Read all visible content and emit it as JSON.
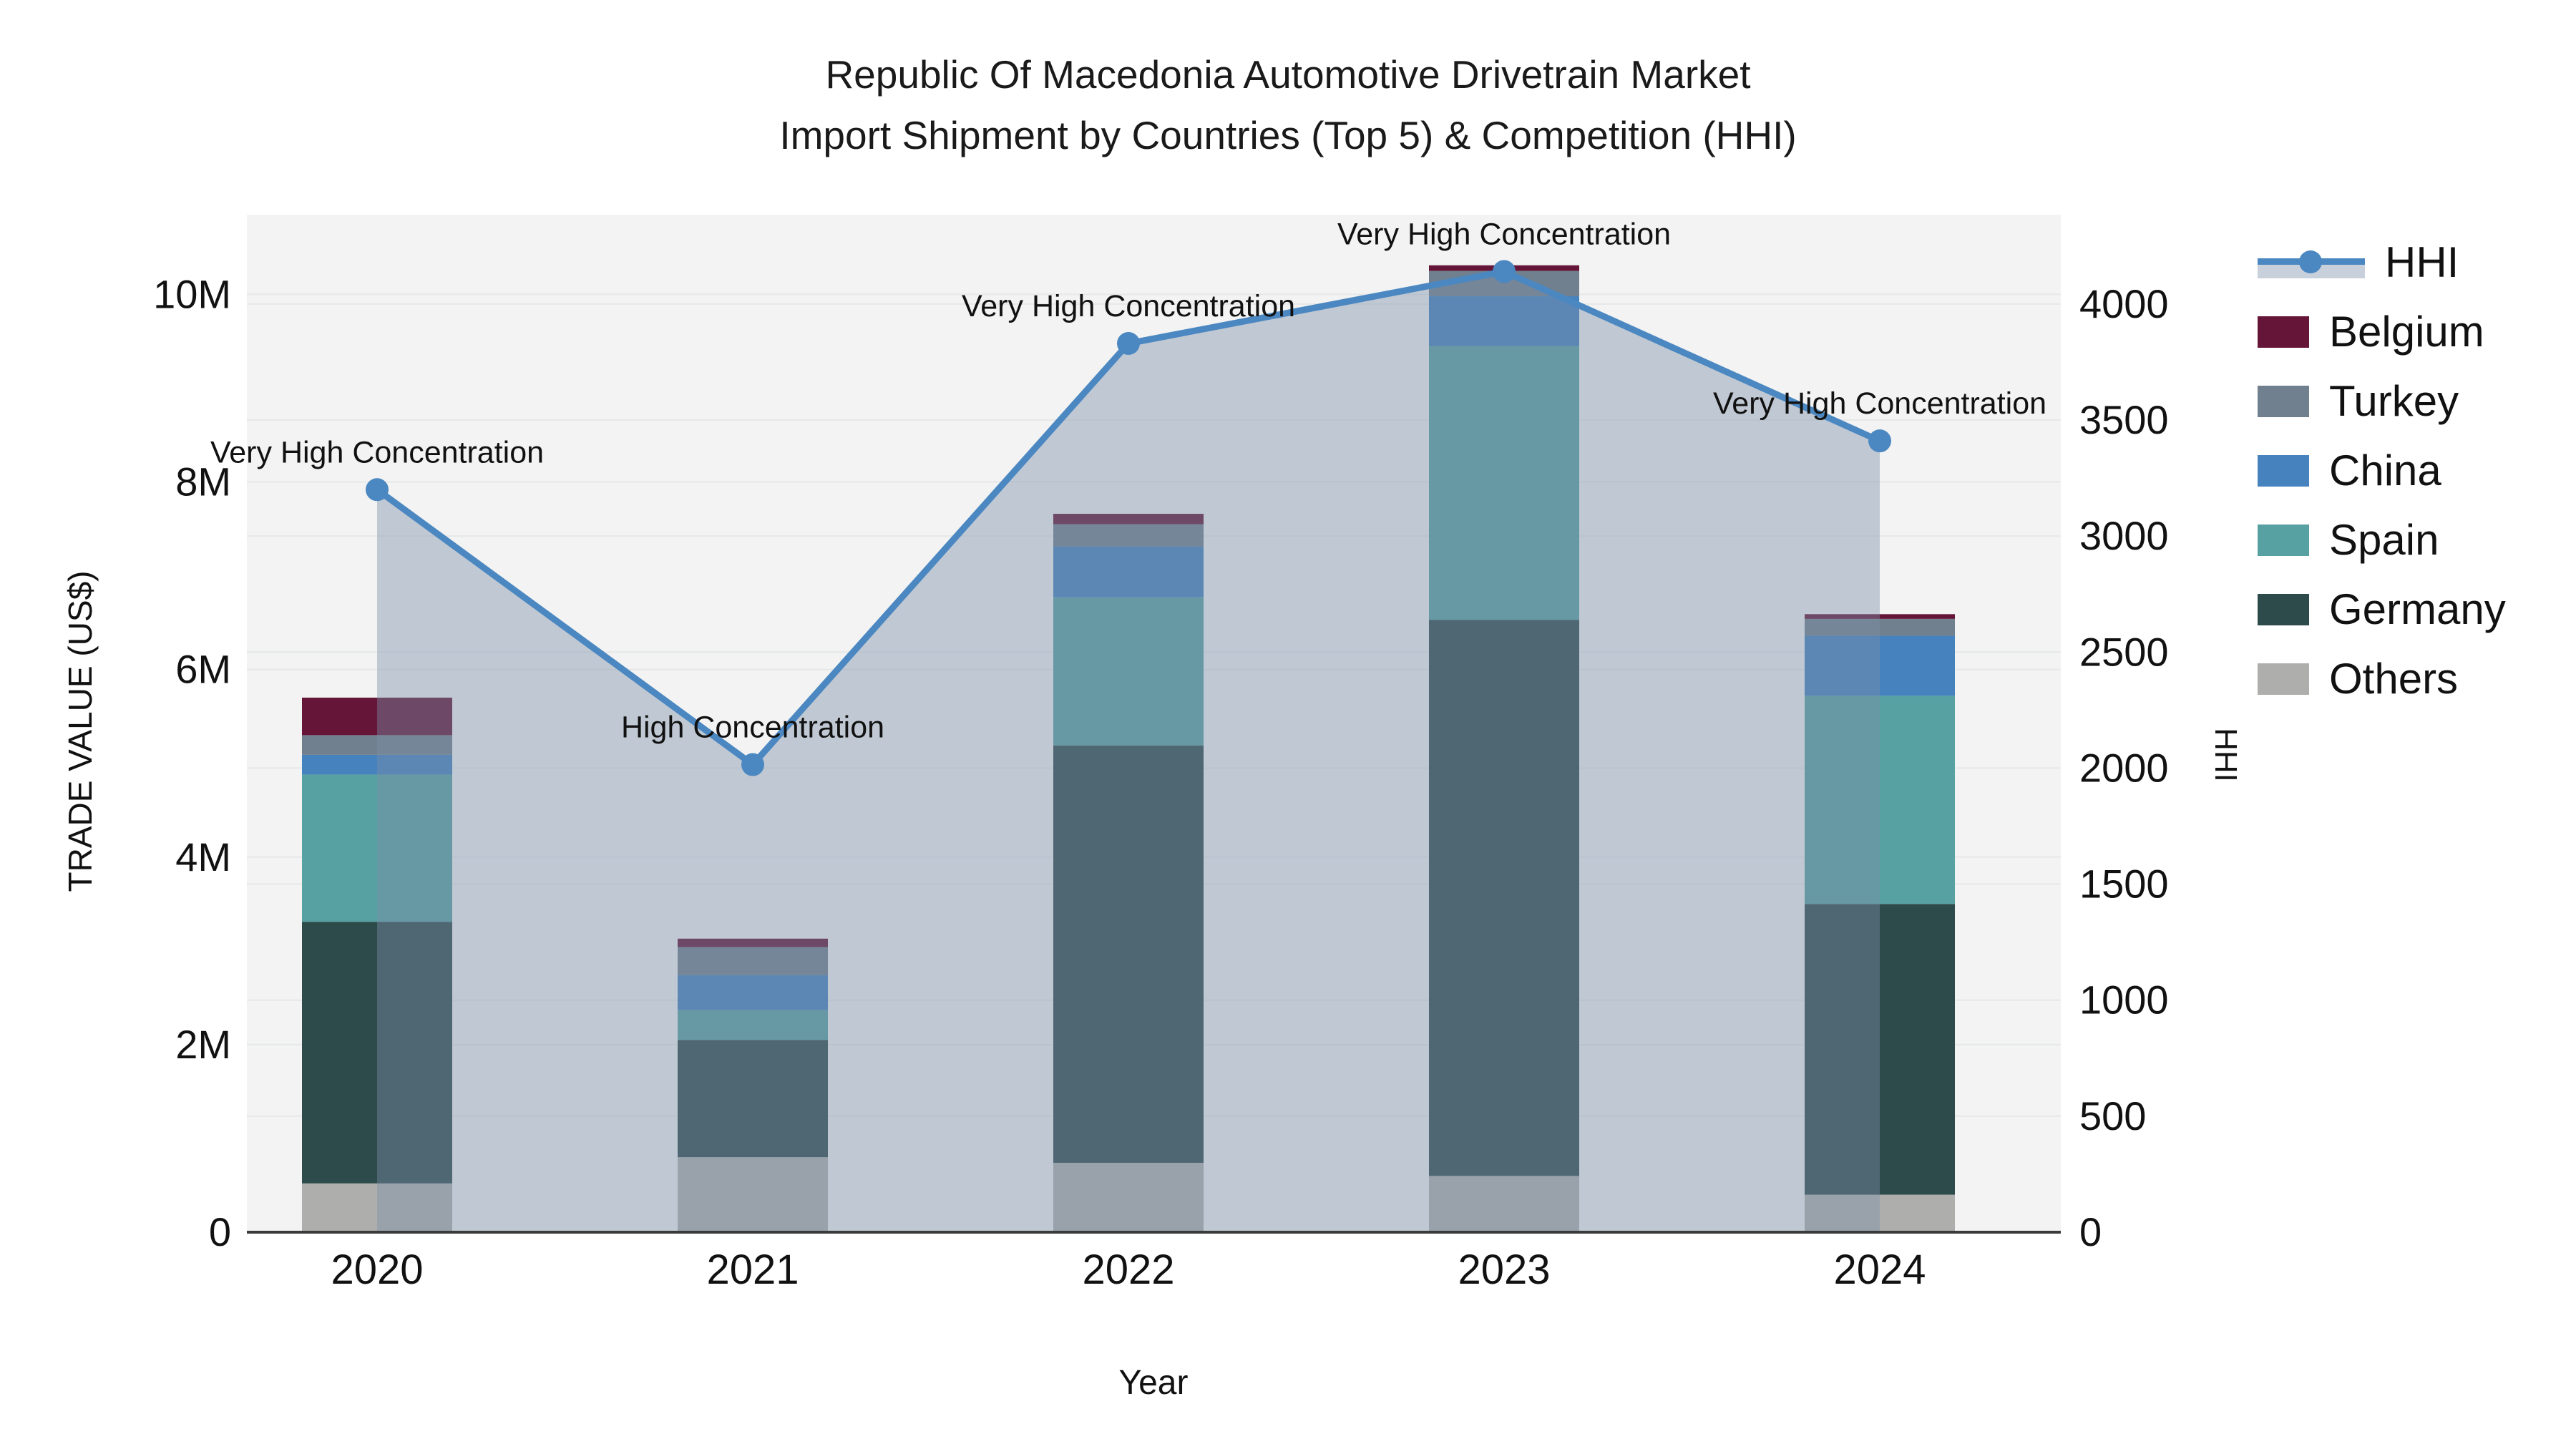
{
  "title_line1": "Republic Of Macedonia Automotive Drivetrain Market",
  "title_line2": "Import Shipment by Countries (Top 5) & Competition (HHI)",
  "axes": {
    "xlabel": "Year",
    "ylabel_left": "TRADE VALUE (US$)",
    "ylabel_right": "HHI",
    "yticks_left_labels": [
      "0",
      "2M",
      "4M",
      "6M",
      "8M",
      "10M"
    ],
    "yticks_left_values": [
      0,
      2000000,
      4000000,
      6000000,
      8000000,
      10000000
    ],
    "yticks_right_labels": [
      "0",
      "500",
      "1000",
      "1500",
      "2000",
      "2500",
      "3000",
      "3500",
      "4000"
    ],
    "yticks_right_values": [
      0,
      500,
      1000,
      1500,
      2000,
      2500,
      3000,
      3500,
      4000
    ]
  },
  "chart_data": {
    "type": "bar+line",
    "categories": [
      "2020",
      "2021",
      "2022",
      "2023",
      "2024"
    ],
    "stack_order_bottom_to_top": [
      "Others",
      "Germany",
      "Spain",
      "China",
      "Turkey",
      "Belgium"
    ],
    "series": [
      {
        "name": "Others",
        "color": "#aeaeac",
        "values": [
          520000,
          800000,
          740000,
          600000,
          400000
        ]
      },
      {
        "name": "Germany",
        "color": "#2d4b4a",
        "values": [
          2790000,
          1250000,
          4450000,
          5930000,
          3100000
        ]
      },
      {
        "name": "Spain",
        "color": "#58a1a2",
        "values": [
          1570000,
          320000,
          1580000,
          2920000,
          2220000
        ]
      },
      {
        "name": "China",
        "color": "#4682bd",
        "values": [
          210000,
          370000,
          540000,
          530000,
          640000
        ]
      },
      {
        "name": "Turkey",
        "color": "#71808e",
        "values": [
          210000,
          300000,
          240000,
          270000,
          180000
        ]
      },
      {
        "name": "Belgium",
        "color": "#651638",
        "values": [
          400000,
          90000,
          110000,
          60000,
          50000
        ]
      }
    ],
    "bar_totals": [
      5700000,
      3130000,
      7660000,
      10310000,
      6590000
    ],
    "hhi_line": {
      "name": "HHI",
      "color": "#4b87c1",
      "area_fill": "rgba(125,143,170,0.42)",
      "values": [
        3200,
        2015,
        3830,
        4140,
        3410
      ]
    },
    "annotations": [
      {
        "year": "2020",
        "text": "Very High Concentration"
      },
      {
        "year": "2021",
        "text": "High Concentration"
      },
      {
        "year": "2022",
        "text": "Very High Concentration"
      },
      {
        "year": "2023",
        "text": "Very High Concentration"
      },
      {
        "year": "2024",
        "text": "Very High Concentration"
      }
    ],
    "ylim_left": [
      0,
      10850000
    ],
    "ylim_right": [
      0,
      4385
    ],
    "grid": true,
    "legend_position": "right"
  },
  "legend": {
    "items": [
      {
        "label": "HHI",
        "type": "line",
        "color": "#4b87c1"
      },
      {
        "label": "Belgium",
        "type": "swatch",
        "color": "#651638"
      },
      {
        "label": "Turkey",
        "type": "swatch",
        "color": "#71808e"
      },
      {
        "label": "China",
        "type": "swatch",
        "color": "#4682bd"
      },
      {
        "label": "Spain",
        "type": "swatch",
        "color": "#58a1a2"
      },
      {
        "label": "Germany",
        "type": "swatch",
        "color": "#2d4b4a"
      },
      {
        "label": "Others",
        "type": "swatch",
        "color": "#aeaeac"
      }
    ]
  },
  "style": {
    "plot_bg": "#f2f3f2",
    "grid_color": "#e6e8e9",
    "axis_line_color": "#3a3a3a",
    "text_color": "#111111"
  }
}
